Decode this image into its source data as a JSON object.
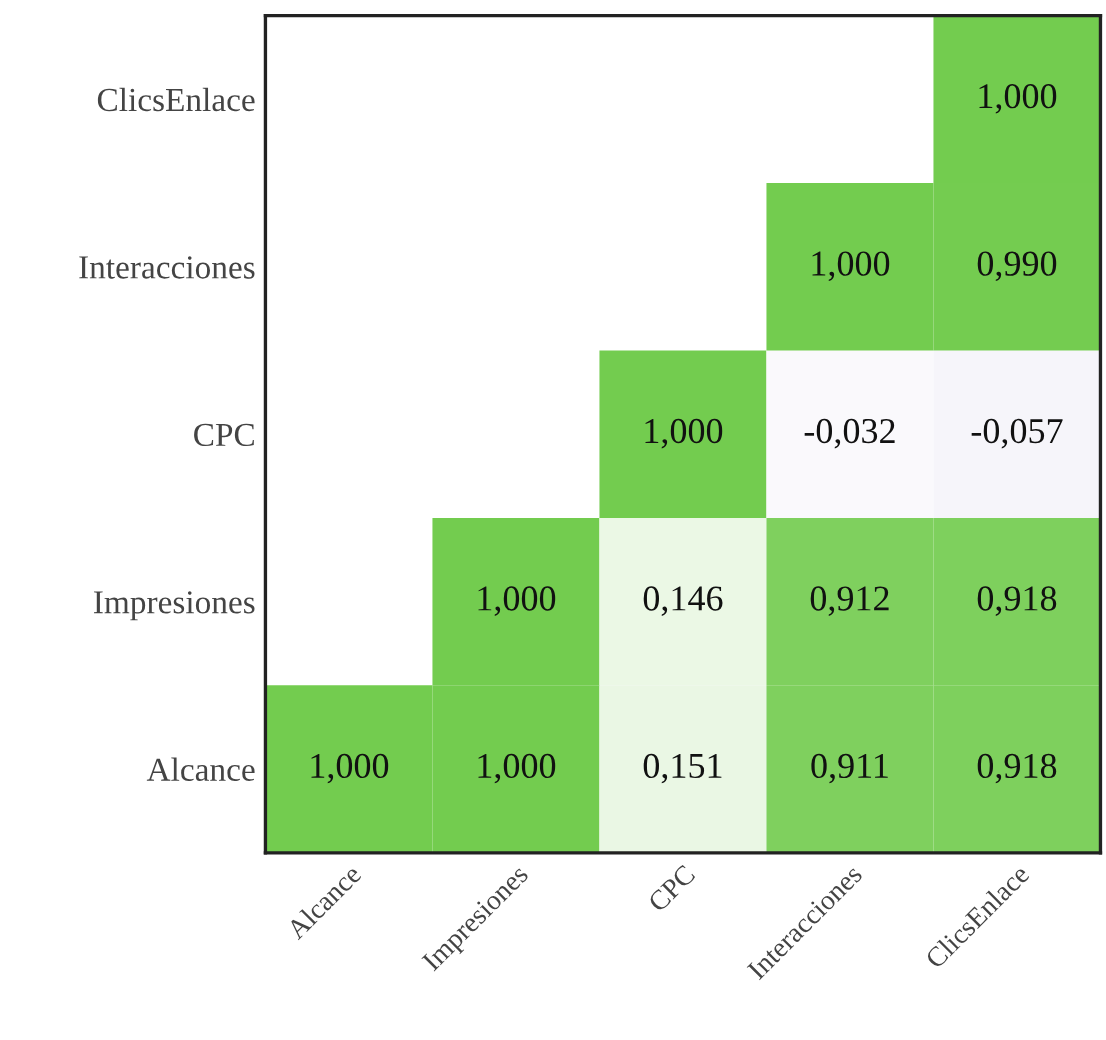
{
  "chart_data": {
    "type": "heatmap",
    "categories": [
      "Alcance",
      "Impresiones",
      "CPC",
      "Interacciones",
      "ClicsEnlace"
    ],
    "y_categories": [
      "ClicsEnlace",
      "Interacciones",
      "CPC",
      "Impresiones",
      "Alcance"
    ],
    "cells": [
      [
        null,
        null,
        null,
        null,
        1.0
      ],
      [
        null,
        null,
        null,
        1.0,
        0.99
      ],
      [
        null,
        null,
        1.0,
        -0.032,
        -0.057
      ],
      [
        null,
        1.0,
        0.146,
        0.912,
        0.918
      ],
      [
        1.0,
        1.0,
        0.151,
        0.911,
        0.918
      ]
    ],
    "cell_labels": [
      [
        null,
        null,
        null,
        null,
        "1,000"
      ],
      [
        null,
        null,
        null,
        "1,000",
        "0,990"
      ],
      [
        null,
        null,
        "1,000",
        "-0,032",
        "-0,057"
      ],
      [
        null,
        "1,000",
        "0,146",
        "0,912",
        "0,918"
      ],
      [
        "1,000",
        "1,000",
        "0,151",
        "0,911",
        "0,918"
      ]
    ]
  }
}
